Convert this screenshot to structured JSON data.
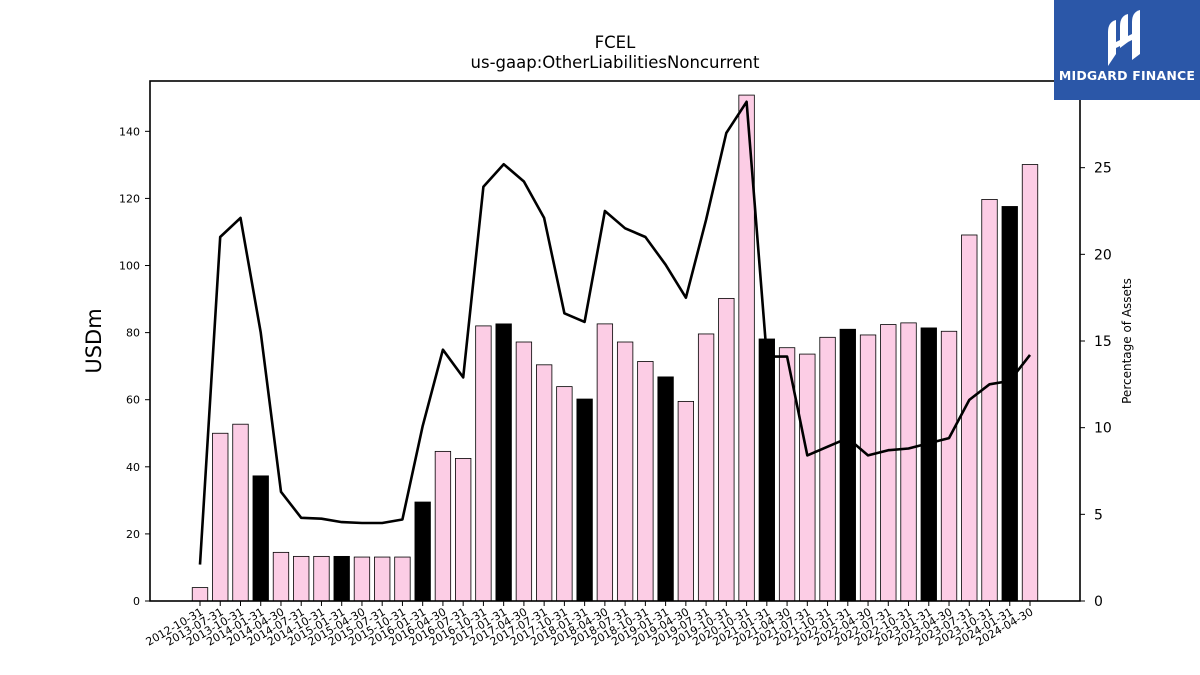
{
  "logo": {
    "text": "MIDGARD FINANCE",
    "icon": "midgard-logo-icon"
  },
  "chart_data": {
    "type": "bar",
    "title": "FCEL",
    "subtitle": "us-gaap:OtherLiabilitiesNoncurrent",
    "ylabel": "USDm",
    "y2label": "Percentage of Assets",
    "ylim": [
      0,
      155
    ],
    "y2lim": [
      0,
      30
    ],
    "yticks": [
      0,
      20,
      40,
      60,
      80,
      100,
      120,
      140
    ],
    "y2ticks": [
      0,
      5,
      10,
      15,
      20,
      25
    ],
    "grid": false,
    "colors": {
      "bar_default": "#fccde5",
      "bar_highlight": "#000000",
      "line": "#000000",
      "edge": "#000000"
    },
    "categories": [
      "2012-10-31",
      "2013-07-31",
      "2013-10-31",
      "2014-01-31",
      "2014-04-30",
      "2014-07-31",
      "2014-10-31",
      "2015-01-31",
      "2015-04-30",
      "2015-07-31",
      "2015-10-31",
      "2016-01-31",
      "2016-04-30",
      "2016-07-31",
      "2016-10-31",
      "2017-01-31",
      "2017-04-30",
      "2017-07-31",
      "2017-10-31",
      "2018-01-31",
      "2018-04-30",
      "2018-07-31",
      "2018-10-31",
      "2019-01-31",
      "2019-04-30",
      "2019-07-31",
      "2019-10-31",
      "2020-10-31",
      "2021-01-31",
      "2021-04-30",
      "2021-07-31",
      "2021-10-31",
      "2022-01-31",
      "2022-04-30",
      "2022-07-31",
      "2022-10-31",
      "2023-01-31",
      "2023-04-30",
      "2023-07-31",
      "2023-10-31",
      "2024-01-31",
      "2024-04-30"
    ],
    "series": [
      {
        "kind": "bar",
        "axis": "left",
        "values": [
          4,
          50,
          52.7,
          37.3,
          14.5,
          13.3,
          13.3,
          13.3,
          13.1,
          13.1,
          13.1,
          29.5,
          44.6,
          42.5,
          82,
          82.6,
          77.2,
          70.4,
          63.9,
          60.2,
          82.6,
          77.2,
          71.4,
          66.8,
          59.5,
          79.6,
          90.2,
          150.8,
          78.1,
          75.5,
          73.6,
          78.6,
          81,
          79.3,
          82.4,
          82.9,
          81.4,
          80.4,
          109.1,
          119.7,
          117.6,
          130.1
        ],
        "highlight": [
          false,
          false,
          false,
          true,
          false,
          false,
          false,
          true,
          false,
          false,
          false,
          true,
          false,
          false,
          false,
          true,
          false,
          false,
          false,
          true,
          false,
          false,
          false,
          true,
          false,
          false,
          false,
          false,
          true,
          false,
          false,
          false,
          true,
          false,
          false,
          false,
          true,
          false,
          false,
          false,
          true,
          false
        ]
      },
      {
        "kind": "line",
        "axis": "right",
        "values": [
          2.1,
          21,
          22.1,
          15.5,
          6.3,
          4.8,
          4.75,
          4.55,
          4.5,
          4.5,
          4.7,
          10.1,
          14.5,
          12.9,
          23.9,
          25.2,
          24.2,
          22.1,
          16.6,
          16.1,
          22.5,
          21.5,
          21,
          19.4,
          17.5,
          22,
          27,
          28.8,
          14.1,
          14.1,
          8.4,
          8.9,
          9.4,
          8.4,
          8.7,
          8.8,
          9.1,
          9.4,
          11.6,
          12.5,
          12.7,
          14.2
        ]
      }
    ]
  }
}
